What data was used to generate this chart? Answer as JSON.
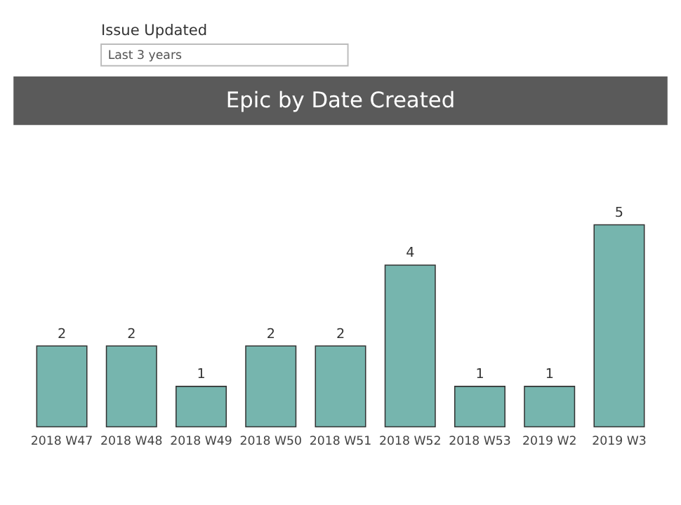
{
  "chart_data": {
    "type": "bar",
    "title": "Epic by Date Created",
    "annotations": [
      "Issue Updated",
      "Last 3 years"
    ],
    "categories": [
      "2018 W47",
      "2018 W48",
      "2018 W49",
      "2018 W50",
      "2018 W51",
      "2018 W52",
      "2018 W53",
      "2019 W2",
      "2019 W3"
    ],
    "values": [
      2,
      2,
      1,
      2,
      2,
      4,
      1,
      1,
      5
    ],
    "color": "#76b5ae",
    "data_labels": true
  }
}
